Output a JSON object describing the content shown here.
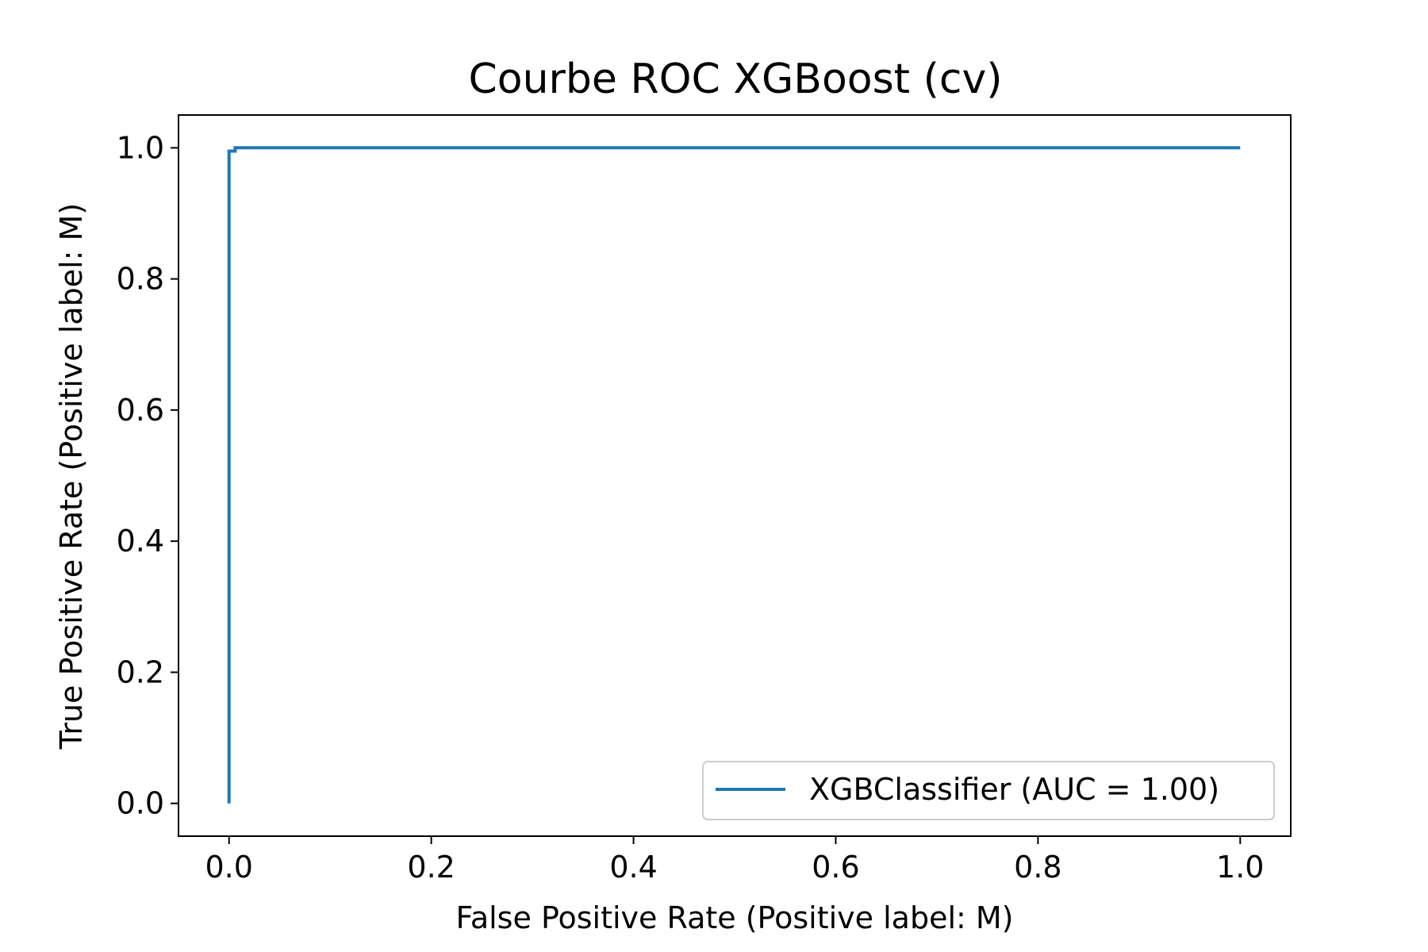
{
  "chart_data": {
    "type": "line",
    "title": "Courbe ROC XGBoost (cv)",
    "xlabel": "False Positive Rate (Positive label: M)",
    "ylabel": "True Positive Rate (Positive label: M)",
    "xlim": [
      -0.05,
      1.05
    ],
    "ylim": [
      -0.05,
      1.05
    ],
    "xticks": [
      0.0,
      0.2,
      0.4,
      0.6,
      0.8,
      1.0
    ],
    "xtick_labels": [
      "0.0",
      "0.2",
      "0.4",
      "0.6",
      "0.8",
      "1.0"
    ],
    "yticks": [
      0.0,
      0.2,
      0.4,
      0.6,
      0.8,
      1.0
    ],
    "ytick_labels": [
      "0.0",
      "0.2",
      "0.4",
      "0.6",
      "0.8",
      "1.0"
    ],
    "grid": false,
    "legend_position": "lower-right",
    "series": [
      {
        "name": "XGBClassifier (AUC = 1.00)",
        "color": "#1f77b4",
        "x": [
          0.0,
          0.0,
          0.006,
          0.006,
          1.0
        ],
        "y": [
          0.0,
          0.995,
          0.995,
          1.0,
          1.0
        ]
      }
    ]
  }
}
